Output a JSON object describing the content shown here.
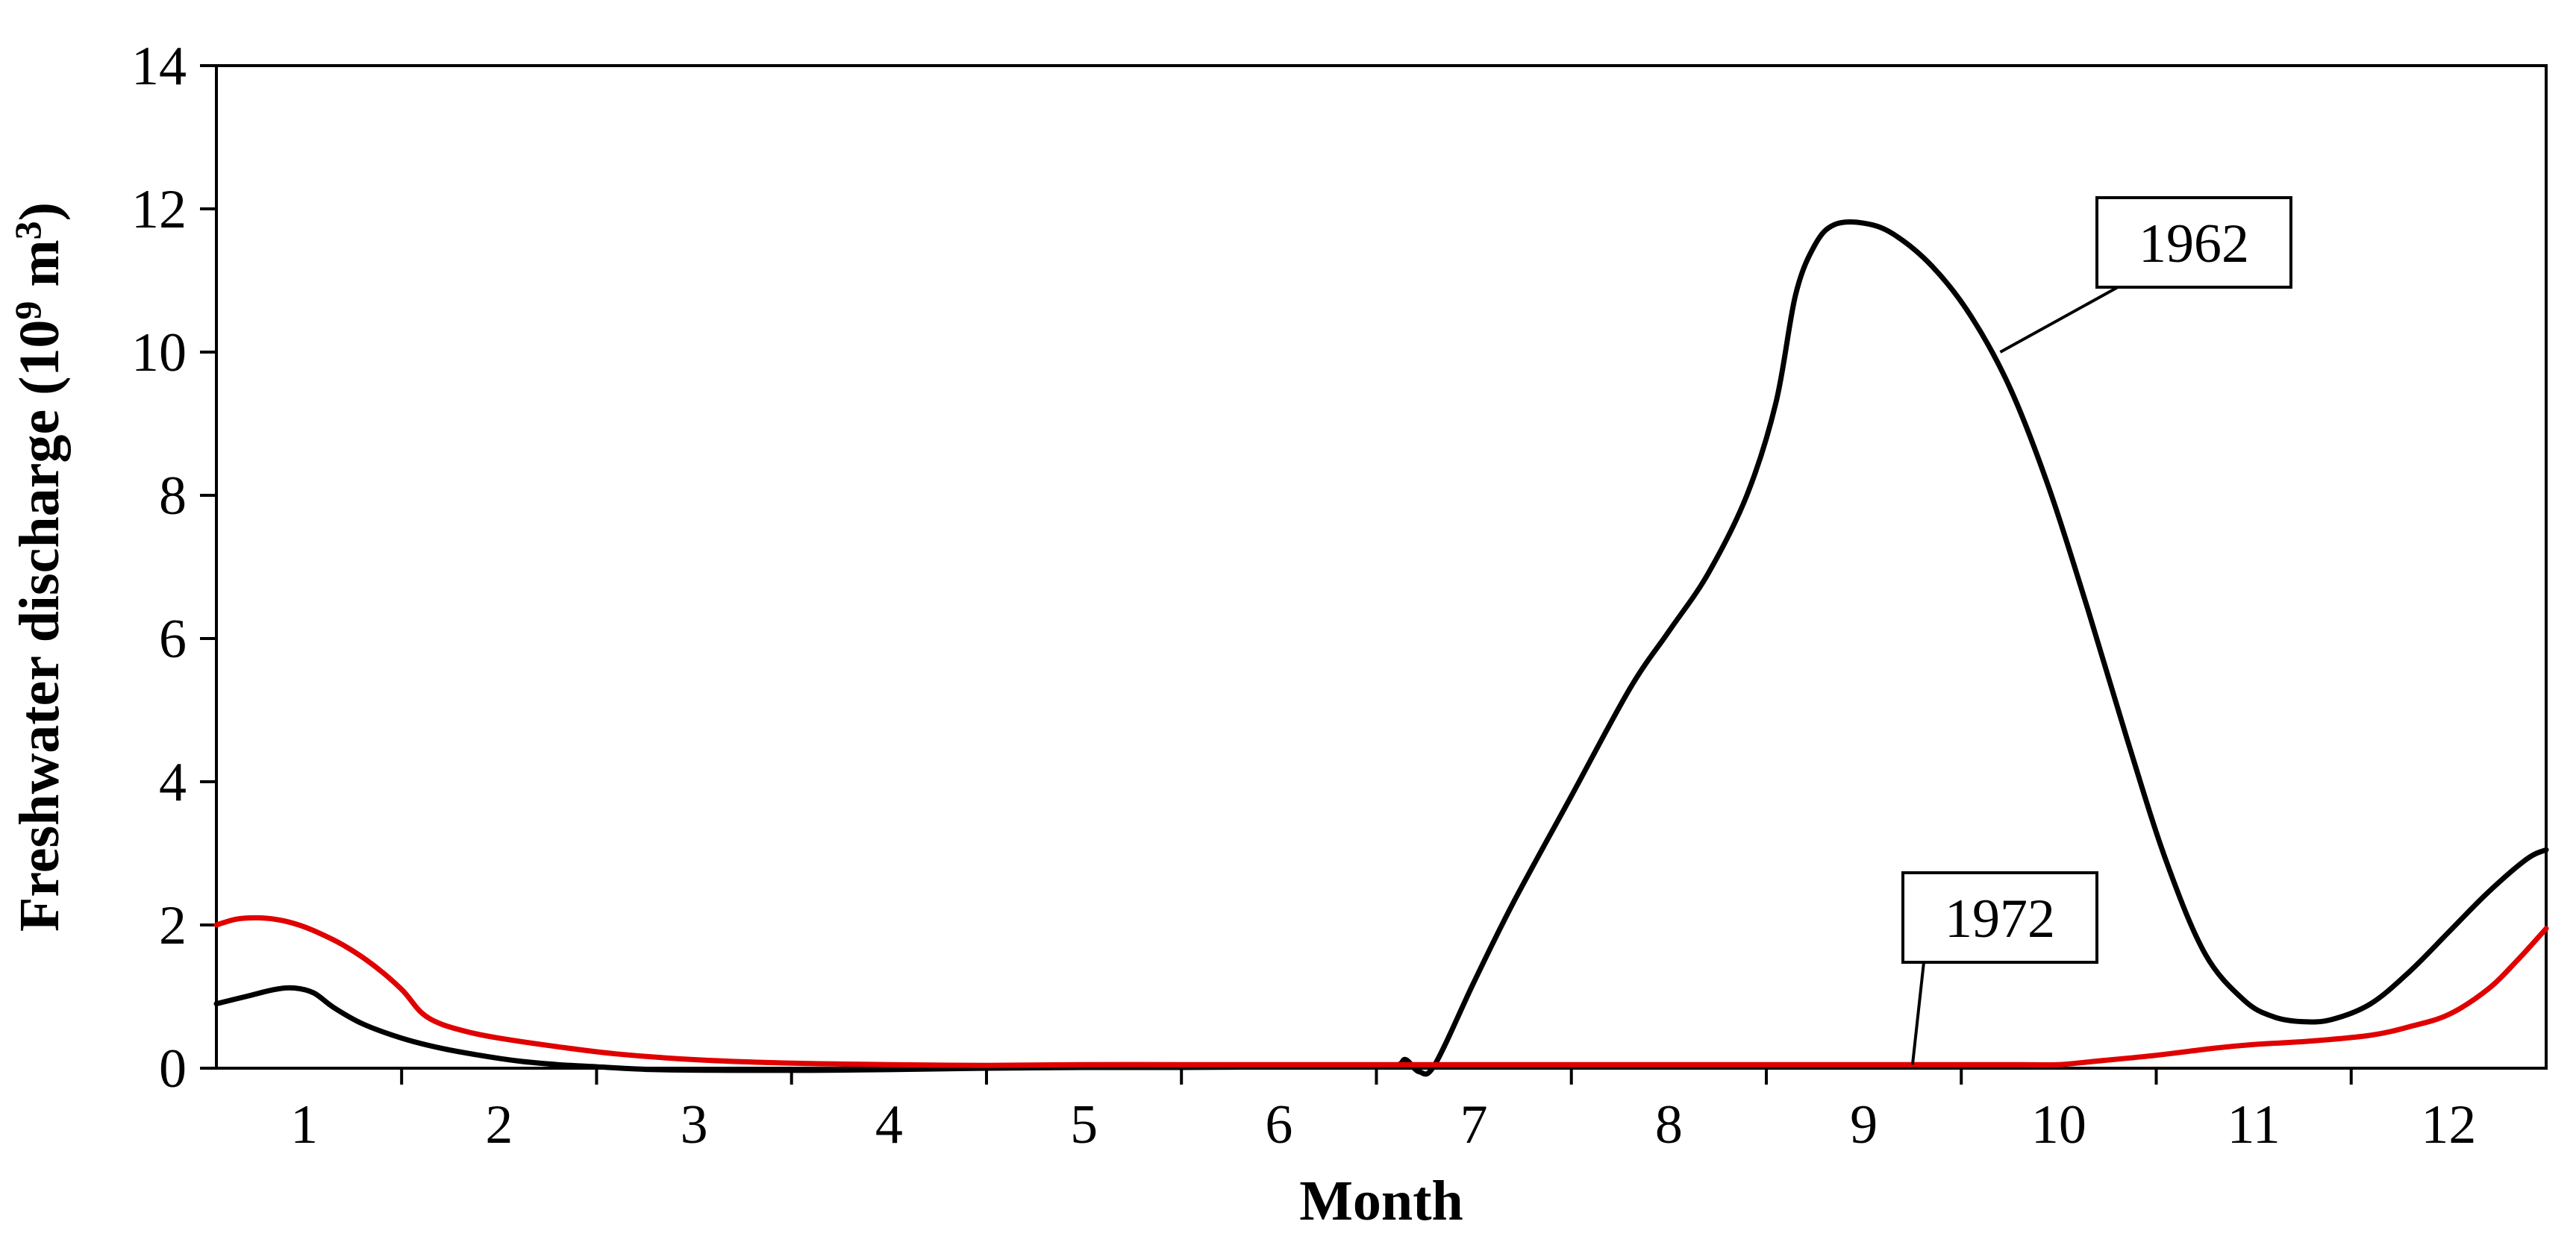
{
  "chart_data": {
    "type": "line",
    "title": "",
    "xlabel": "Month",
    "ylabel": {
      "main": "Freshwater discharge (10",
      "exp1": "9",
      "mid": " m",
      "exp2": "3",
      "end": ")"
    },
    "xlim": [
      0.55,
      12.5
    ],
    "ylim": [
      0,
      14
    ],
    "xticks": [
      1,
      2,
      3,
      4,
      5,
      6,
      7,
      8,
      9,
      10,
      11,
      12
    ],
    "yticks": [
      0,
      2,
      4,
      6,
      8,
      10,
      12,
      14
    ],
    "grid": false,
    "legend": "none",
    "series": [
      {
        "name": "1962",
        "color": "#000000",
        "x": [
          0.55,
          0.7,
          0.85,
          0.95,
          1.05,
          1.15,
          1.3,
          1.5,
          1.7,
          1.9,
          2.1,
          2.3,
          2.5,
          2.8,
          3.2,
          3.6,
          4.0,
          4.5,
          5.0,
          5.5,
          6.0,
          6.4,
          6.6,
          6.65,
          6.72,
          6.8,
          7.0,
          7.2,
          7.5,
          7.8,
          8.0,
          8.2,
          8.4,
          8.55,
          8.65,
          8.75,
          8.85,
          9.0,
          9.15,
          9.35,
          9.55,
          9.75,
          9.95,
          10.15,
          10.35,
          10.55,
          10.75,
          10.95,
          11.1,
          11.25,
          11.4,
          11.6,
          11.8,
          12.0,
          12.2,
          12.4,
          12.5
        ],
        "y": [
          0.9,
          1.0,
          1.1,
          1.12,
          1.05,
          0.85,
          0.62,
          0.42,
          0.28,
          0.18,
          0.1,
          0.05,
          0.02,
          -0.02,
          -0.03,
          -0.03,
          -0.02,
          0.0,
          0.01,
          0.01,
          0.02,
          0.03,
          0.04,
          0.12,
          -0.05,
          0.05,
          1.2,
          2.3,
          3.8,
          5.3,
          6.1,
          6.9,
          8.0,
          9.3,
          10.8,
          11.5,
          11.78,
          11.8,
          11.65,
          11.2,
          10.5,
          9.5,
          8.1,
          6.4,
          4.6,
          2.9,
          1.6,
          0.95,
          0.72,
          0.65,
          0.68,
          0.9,
          1.35,
          1.9,
          2.45,
          2.92,
          3.05
        ]
      },
      {
        "name": "1972",
        "color": "#e00000",
        "x": [
          0.55,
          0.65,
          0.75,
          0.85,
          0.95,
          1.05,
          1.2,
          1.35,
          1.5,
          1.6,
          1.7,
          1.85,
          2.0,
          2.3,
          2.6,
          3.0,
          3.5,
          4.0,
          4.5,
          5.0,
          5.5,
          6.0,
          6.5,
          7.0,
          7.5,
          8.0,
          8.5,
          9.0,
          9.5,
          9.8,
          10.0,
          10.2,
          10.5,
          10.8,
          11.0,
          11.3,
          11.6,
          11.8,
          12.0,
          12.2,
          12.35,
          12.5
        ],
        "y": [
          2.0,
          2.08,
          2.1,
          2.08,
          2.02,
          1.92,
          1.72,
          1.45,
          1.1,
          0.78,
          0.62,
          0.5,
          0.42,
          0.3,
          0.2,
          0.12,
          0.07,
          0.05,
          0.04,
          0.05,
          0.05,
          0.05,
          0.05,
          0.05,
          0.05,
          0.05,
          0.05,
          0.05,
          0.05,
          0.05,
          0.05,
          0.1,
          0.18,
          0.28,
          0.33,
          0.38,
          0.46,
          0.58,
          0.75,
          1.1,
          1.5,
          1.95
        ]
      }
    ],
    "annotations": [
      {
        "text": "1962",
        "series": "1962",
        "point": [
          9.7,
          10.0
        ]
      },
      {
        "text": "1972",
        "series": "1972",
        "point": [
          9.25,
          0.05
        ]
      }
    ]
  }
}
